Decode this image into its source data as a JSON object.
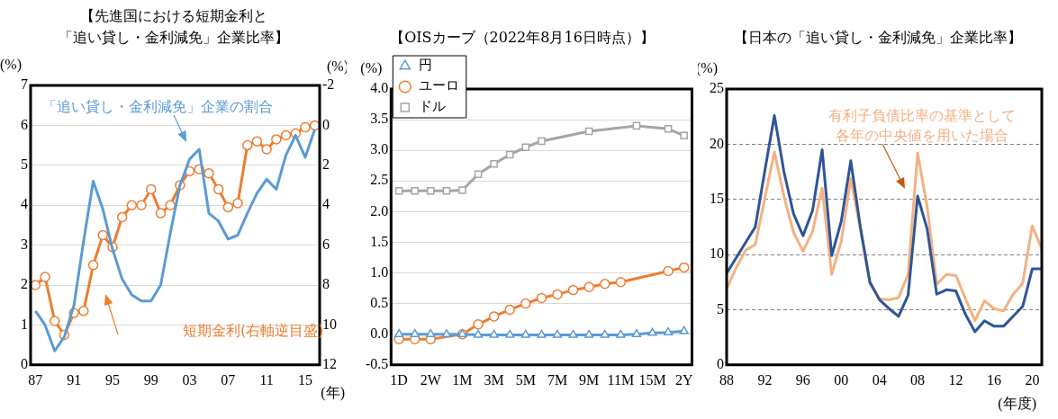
{
  "chart_data": [
    {
      "type": "line",
      "title": "【先進国における短期金利と「追い貸し・金利減免」企業比率】",
      "ylabel": "(%)",
      "y2label": "(%)",
      "xlabel": "(年)",
      "categories": [
        "87",
        null,
        null,
        null,
        "91",
        null,
        null,
        null,
        "95",
        null,
        null,
        null,
        "99",
        null,
        null,
        null,
        "03",
        null,
        null,
        null,
        "07",
        null,
        null,
        null,
        "11",
        null,
        null,
        null,
        "15",
        null
      ],
      "series": [
        {
          "name": "「追い貸し・金利減免」企業の割合",
          "color": "#5b9bd5",
          "marker": "none",
          "values": [
            1.35,
            1.0,
            0.35,
            0.7,
            1.5,
            3.1,
            4.6,
            3.9,
            2.9,
            2.15,
            1.75,
            1.6,
            1.6,
            2.0,
            3.3,
            4.5,
            5.15,
            5.4,
            3.8,
            3.6,
            3.15,
            3.25,
            3.8,
            4.3,
            4.65,
            4.4,
            5.25,
            5.75,
            5.2,
            5.9
          ]
        },
        {
          "name": "短期金利(右軸逆目盛)",
          "color": "#ed7d31",
          "marker": "circle",
          "axis": "y2",
          "values": [
            8.0,
            7.6,
            9.8,
            10.5,
            9.4,
            9.3,
            7.0,
            5.5,
            6.1,
            4.6,
            4.0,
            4.0,
            3.2,
            4.4,
            4.0,
            3.0,
            2.3,
            2.2,
            2.4,
            3.2,
            4.1,
            3.9,
            1.0,
            0.8,
            1.2,
            0.7,
            0.5,
            0.4,
            0.1,
            0.0
          ]
        }
      ],
      "ylim": [
        0,
        7
      ],
      "yticks": [
        0,
        1,
        2,
        3,
        4,
        5,
        6,
        7
      ],
      "y2lim": [
        12,
        -2
      ],
      "y2ticks": [
        -2,
        0,
        2,
        4,
        6,
        8,
        10,
        12
      ],
      "grid": "y"
    },
    {
      "type": "line",
      "title": "【OISカーブ（2022年8月16日時点）】",
      "ylabel": "(%)",
      "categories": [
        "1D",
        null,
        "2W",
        null,
        "1M",
        null,
        "3M",
        null,
        "5M",
        null,
        "7M",
        null,
        "9M",
        null,
        "11M",
        null,
        "15M",
        null,
        "2Y"
      ],
      "series": [
        {
          "name": "円",
          "color": "#5b9bd5",
          "marker": "triangle",
          "values": [
            0.0,
            0.0,
            0.0,
            0.0,
            0.0,
            -0.01,
            -0.01,
            -0.01,
            -0.01,
            -0.01,
            -0.01,
            -0.01,
            -0.01,
            -0.01,
            -0.01,
            0.0,
            0.02,
            0.03,
            0.05
          ]
        },
        {
          "name": "ユーロ",
          "color": "#ed7d31",
          "marker": "circle",
          "values": [
            -0.08,
            -0.08,
            -0.08,
            null,
            0.0,
            0.16,
            0.29,
            0.4,
            0.5,
            0.59,
            0.65,
            0.72,
            0.77,
            0.82,
            0.85,
            null,
            null,
            1.03,
            1.09
          ]
        },
        {
          "name": "ドル",
          "color": "#a5a5a5",
          "marker": "square",
          "values": [
            2.34,
            2.34,
            2.34,
            2.34,
            2.35,
            2.61,
            2.78,
            2.93,
            3.05,
            3.15,
            null,
            null,
            3.31,
            null,
            null,
            3.4,
            null,
            3.35,
            3.24
          ]
        }
      ],
      "ylim": [
        -0.5,
        4
      ],
      "yticks": [
        -0.5,
        {
          "value": 0,
          "label": "0.0"
        },
        0.5,
        {
          "value": 1,
          "label": "1.0"
        },
        1.5,
        {
          "value": 2,
          "label": "2.0"
        },
        2.5,
        {
          "value": 3,
          "label": "3.0"
        },
        3.5,
        {
          "value": 4,
          "label": "4.0"
        }
      ],
      "grid": "y",
      "legend": "top left"
    },
    {
      "type": "line",
      "title": "【日本の「追い貸し・金利減免」企業比率】",
      "ylabel": "(%)",
      "xlabel": "(年度)",
      "categories": [
        "88",
        null,
        null,
        null,
        "92",
        null,
        null,
        null,
        "96",
        null,
        null,
        null,
        "00",
        null,
        null,
        null,
        "04",
        null,
        null,
        null,
        "08",
        null,
        null,
        null,
        "12",
        null,
        null,
        null,
        "16",
        null,
        null,
        null,
        "20",
        null
      ],
      "series": [
        {
          "color": "#2f5597",
          "values": [
            8.3,
            9.7,
            11.1,
            12.5,
            17.6,
            22.6,
            17.5,
            13.7,
            11.7,
            14.0,
            19.5,
            9.9,
            13.0,
            18.5,
            12.5,
            7.5,
            5.9,
            5.1,
            4.4,
            6.3,
            15.3,
            12.3,
            6.4,
            6.8,
            6.7,
            4.6,
            3.0,
            4.0,
            3.5,
            3.5,
            4.4,
            5.3,
            8.7,
            8.7
          ]
        },
        {
          "name": "有利子負債比率の基準として各年の中央値を用いた場合",
          "color": "#f4b183",
          "values": [
            6.9,
            8.8,
            10.4,
            10.9,
            15.1,
            19.3,
            15.3,
            12.0,
            10.3,
            12.1,
            16.0,
            8.2,
            11.2,
            16.9,
            12.3,
            7.4,
            6.0,
            5.9,
            6.1,
            8.2,
            19.2,
            14.3,
            7.3,
            8.2,
            8.1,
            6.0,
            4.0,
            5.8,
            5.1,
            4.9,
            6.4,
            7.4,
            12.6,
            10.5
          ]
        }
      ],
      "marker": "none",
      "ylim": [
        0,
        25
      ],
      "yticks": [
        0,
        5,
        10,
        15,
        20,
        25
      ],
      "grid": "y"
    }
  ]
}
